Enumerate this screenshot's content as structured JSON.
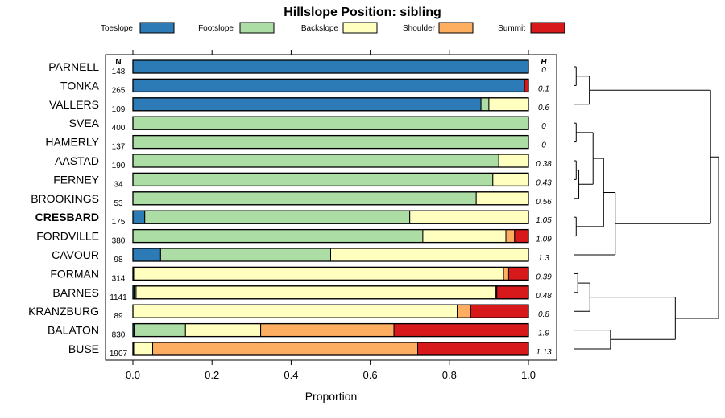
{
  "chart_data": {
    "type": "bar",
    "subtype": "stacked-horizontal-proportion",
    "title": "Hillslope Position: sibling",
    "xlabel": "Proportion",
    "xlim": [
      0,
      1
    ],
    "xticks": [
      "0.0",
      "0.2",
      "0.4",
      "0.6",
      "0.8",
      "1.0"
    ],
    "n_header": "N",
    "h_header": "H",
    "highlight": "CRESBARD",
    "legend": [
      {
        "name": "Toeslope",
        "color": "#2c7bb6"
      },
      {
        "name": "Footslope",
        "color": "#abdda4"
      },
      {
        "name": "Backslope",
        "color": "#ffffbf"
      },
      {
        "name": "Shoulder",
        "color": "#fdae61"
      },
      {
        "name": "Summit",
        "color": "#d7191c"
      }
    ],
    "rows": [
      {
        "name": "PARNELL",
        "n": "148",
        "h": "0",
        "values": [
          1.0,
          0,
          0,
          0,
          0
        ]
      },
      {
        "name": "TONKA",
        "n": "265",
        "h": "0.1",
        "values": [
          0.99,
          0,
          0,
          0,
          0.01
        ]
      },
      {
        "name": "VALLERS",
        "n": "109",
        "h": "0.6",
        "values": [
          0.88,
          0.02,
          0.1,
          0,
          0
        ]
      },
      {
        "name": "SVEA",
        "n": "400",
        "h": "0",
        "values": [
          0,
          1.0,
          0,
          0,
          0
        ]
      },
      {
        "name": "HAMERLY",
        "n": "137",
        "h": "0",
        "values": [
          0,
          1.0,
          0,
          0,
          0
        ]
      },
      {
        "name": "AASTAD",
        "n": "190",
        "h": "0.38",
        "values": [
          0,
          0.925,
          0.075,
          0,
          0
        ]
      },
      {
        "name": "FERNEY",
        "n": "34",
        "h": "0.43",
        "values": [
          0,
          0.91,
          0.09,
          0,
          0
        ]
      },
      {
        "name": "BROOKINGS",
        "n": "53",
        "h": "0.56",
        "values": [
          0,
          0.868,
          0.132,
          0,
          0
        ]
      },
      {
        "name": "CRESBARD",
        "n": "175",
        "h": "1.05",
        "values": [
          0.03,
          0.67,
          0.3,
          0,
          0
        ]
      },
      {
        "name": "FORDVILLE",
        "n": "380",
        "h": "1.09",
        "values": [
          0,
          0.733,
          0.21,
          0.022,
          0.035
        ]
      },
      {
        "name": "CAVOUR",
        "n": "98",
        "h": "1.3",
        "values": [
          0.07,
          0.43,
          0.5,
          0,
          0
        ]
      },
      {
        "name": "FORMAN",
        "n": "314",
        "h": "0.39",
        "values": [
          0,
          0.002,
          0.935,
          0.013,
          0.05
        ]
      },
      {
        "name": "BARNES",
        "n": "1141",
        "h": "0.48",
        "values": [
          0.003,
          0.005,
          0.91,
          0.002,
          0.08
        ]
      },
      {
        "name": "KRANZBURG",
        "n": "89",
        "h": "0.8",
        "values": [
          0,
          0,
          0.82,
          0.034,
          0.146
        ]
      },
      {
        "name": "BALATON",
        "n": "830",
        "h": "1.9",
        "values": [
          0.003,
          0.13,
          0.19,
          0.337,
          0.34
        ]
      },
      {
        "name": "BUSE",
        "n": "1907",
        "h": "1.13",
        "values": [
          0,
          0.002,
          0.048,
          0.67,
          0.28
        ]
      }
    ],
    "dendrogram": {
      "leaf_order": [
        "PARNELL",
        "TONKA",
        "VALLERS",
        "SVEA",
        "HAMERLY",
        "AASTAD",
        "FERNEY",
        "BROOKINGS",
        "CRESBARD",
        "FORDVILLE",
        "CAVOUR",
        "FORMAN",
        "BARNES",
        "KRANZBURG",
        "BALATON",
        "BUSE"
      ],
      "merges": [
        [
          0,
          1,
          0.05
        ],
        [
          -1,
          2,
          0.3
        ],
        [
          5,
          6,
          0.05
        ],
        [
          -3,
          7,
          0.1
        ],
        [
          3,
          4,
          0.05
        ],
        [
          -5,
          -4,
          0.37
        ],
        [
          8,
          9,
          0.05
        ],
        [
          -7,
          -6,
          0.57
        ],
        [
          -8,
          10,
          0.79
        ],
        [
          11,
          12,
          0.08
        ],
        [
          -10,
          13,
          0.31
        ],
        [
          14,
          15,
          0.7
        ],
        [
          -11,
          -12,
          1.93
        ],
        [
          -2,
          -9,
          2.6
        ],
        [
          -14,
          -13,
          2.75
        ]
      ]
    }
  }
}
